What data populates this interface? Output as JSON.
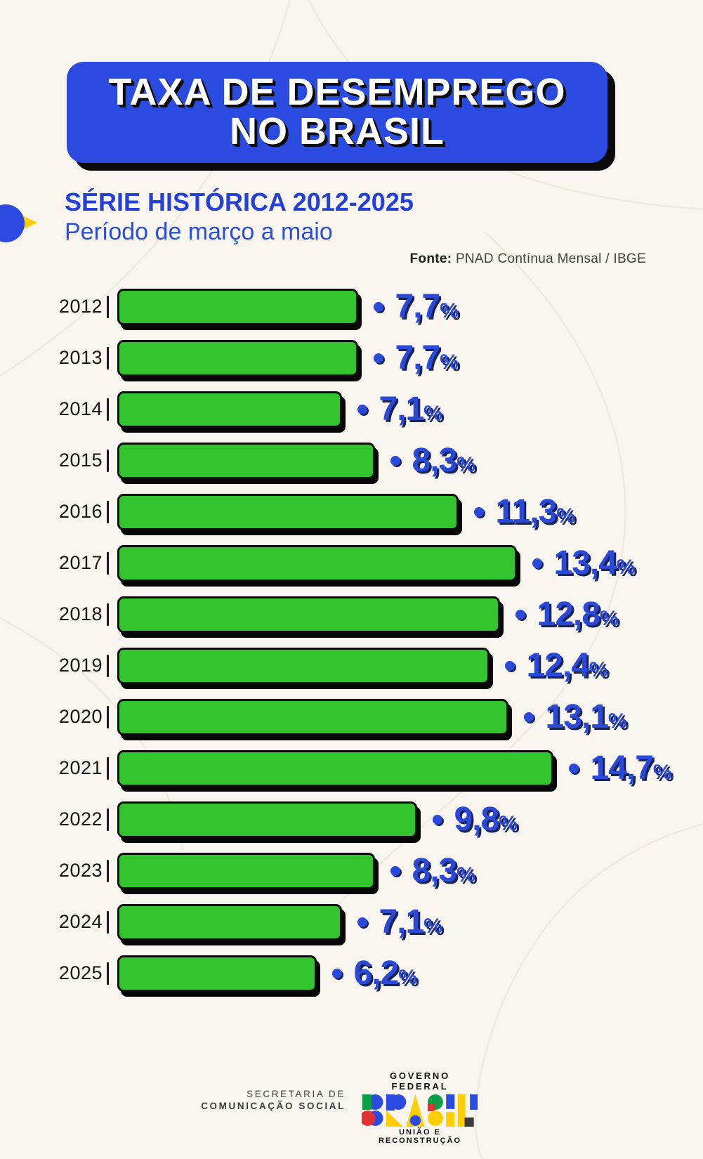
{
  "page": {
    "background_color": "#f8f5ee"
  },
  "header": {
    "title_line1": "TAXA DE DESEMPREGO",
    "title_line2": "NO BRASIL",
    "banner_color": "#2a4ae0",
    "title_color": "#ffffff"
  },
  "subtitle": {
    "line1": "SÉRIE HISTÓRICA 2012-2025",
    "line2": "Período de março a maio",
    "color": "#2440d6"
  },
  "source": {
    "label": "Fonte:",
    "text": " PNAD Contínua Mensal / IBGE"
  },
  "chart_data": {
    "type": "bar",
    "orientation": "horizontal",
    "title": "TAXA DE DESEMPREGO NO BRASIL",
    "subtitle": "SÉRIE HISTÓRICA 2012-2025 — Período de março a maio",
    "source": "PNAD Contínua Mensal / IBGE",
    "unit": "%",
    "categories": [
      "2012",
      "2013",
      "2014",
      "2015",
      "2016",
      "2017",
      "2018",
      "2019",
      "2020",
      "2021",
      "2022",
      "2023",
      "2024",
      "2025"
    ],
    "values": [
      7.7,
      7.7,
      7.1,
      8.3,
      11.3,
      13.4,
      12.8,
      12.4,
      13.1,
      14.7,
      9.8,
      8.3,
      7.1,
      6.2
    ],
    "value_labels": [
      "7,7",
      "7,7",
      "7,1",
      "8,3",
      "11,3",
      "13,4",
      "12,8",
      "12,4",
      "13,1",
      "14,7",
      "9,8",
      "8,3",
      "7,1",
      "6,2"
    ],
    "percent_sign": "%",
    "xlim": [
      0,
      15.5
    ],
    "grid": false,
    "legend": false,
    "bar_color": "#31c42d",
    "bar_border_color": "#0d0d0d",
    "value_color": "#2b49d8",
    "year_color": "#171717"
  },
  "footer": {
    "secretaria_line1": "SECRETARIA DE",
    "secretaria_line2": "COMUNICAÇÃO SOCIAL",
    "governo_federal": "GOVERNO FEDERAL",
    "brasil_logo": "BRASIL",
    "uniao": "UNIÃO E RECONSTRUÇÃO"
  }
}
